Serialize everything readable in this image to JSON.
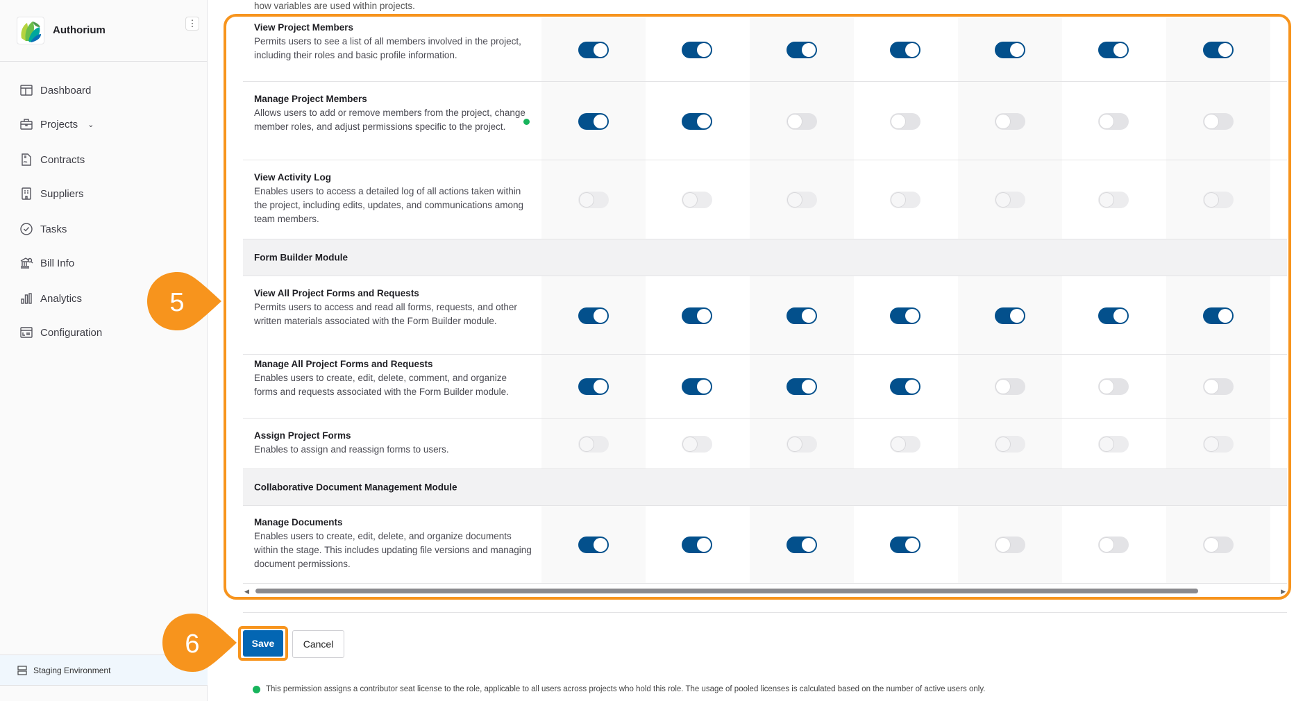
{
  "app": {
    "brand": "Authorium",
    "environment": "Staging Environment"
  },
  "sidebar": {
    "items": [
      {
        "label": "Dashboard",
        "icon": "dashboard-icon"
      },
      {
        "label": "Projects",
        "icon": "briefcase-icon",
        "has_chevron": true
      },
      {
        "label": "Contracts",
        "icon": "contract-icon"
      },
      {
        "label": "Suppliers",
        "icon": "building-icon"
      },
      {
        "label": "Tasks",
        "icon": "check-circle-icon"
      },
      {
        "label": "Bill Info",
        "icon": "bank-search-icon"
      },
      {
        "label": "Analytics",
        "icon": "bar-chart-icon"
      },
      {
        "label": "Configuration",
        "icon": "config-icon"
      }
    ]
  },
  "main": {
    "top_text": "how variables are used within projects.",
    "rows": [
      {
        "type": "perm",
        "title": "View Project Members",
        "desc": "Permits users to see a list of all members involved in the project, including their roles and basic profile information.",
        "toggles": [
          "on",
          "on",
          "on",
          "on",
          "on",
          "on",
          "on"
        ]
      },
      {
        "type": "perm",
        "title": "Manage Project Members",
        "desc": "Allows users to add or remove members from the project, change member roles, and adjust permissions specific to the project.",
        "seat_license": true,
        "toggles": [
          "on",
          "on",
          "off",
          "off",
          "off",
          "off",
          "off"
        ]
      },
      {
        "type": "perm",
        "title": "View Activity Log",
        "desc": "Enables users to access a detailed log of all actions taken within the project, including edits, updates, and communications among team members.",
        "toggles": [
          "dis",
          "dis",
          "dis",
          "dis",
          "dis",
          "dis",
          "dis"
        ]
      },
      {
        "type": "section",
        "title": "Form Builder Module"
      },
      {
        "type": "perm",
        "title": "View All Project Forms and Requests",
        "desc": "Permits users to access and read all forms, requests, and other written materials associated with the Form Builder module.",
        "toggles": [
          "on",
          "on",
          "on",
          "on",
          "on",
          "on",
          "on"
        ]
      },
      {
        "type": "perm",
        "title": "Manage All Project Forms and Requests",
        "desc": "Enables users to create, edit, delete, comment, and organize forms and requests associated with the Form Builder module.",
        "toggles": [
          "on",
          "on",
          "on",
          "on",
          "off",
          "off",
          "off"
        ]
      },
      {
        "type": "perm",
        "title": "Assign Project Forms",
        "desc": "Enables to assign and reassign forms to users.",
        "toggles": [
          "dis",
          "dis",
          "dis",
          "dis",
          "dis",
          "dis",
          "dis"
        ]
      },
      {
        "type": "section",
        "title": "Collaborative Document Management Module"
      },
      {
        "type": "perm",
        "title": "Manage Documents",
        "desc": "Enables users to create, edit, delete, and organize documents within the stage. This includes updating file versions and managing document permissions.",
        "toggles": [
          "on",
          "on",
          "on",
          "on",
          "off",
          "off",
          "off"
        ]
      }
    ],
    "save_label": "Save",
    "cancel_label": "Cancel",
    "footnote": "This permission assigns a contributor seat license to the role, applicable to all users across projects who hold this role. The usage of pooled licenses is calculated based on the number of active users only."
  },
  "callouts": [
    {
      "label": "5"
    },
    {
      "label": "6"
    }
  ],
  "colors": {
    "accent": "#f7941d",
    "toggle_on": "#03508c",
    "save": "#0366b3",
    "seat_dot": "#17b45c"
  }
}
